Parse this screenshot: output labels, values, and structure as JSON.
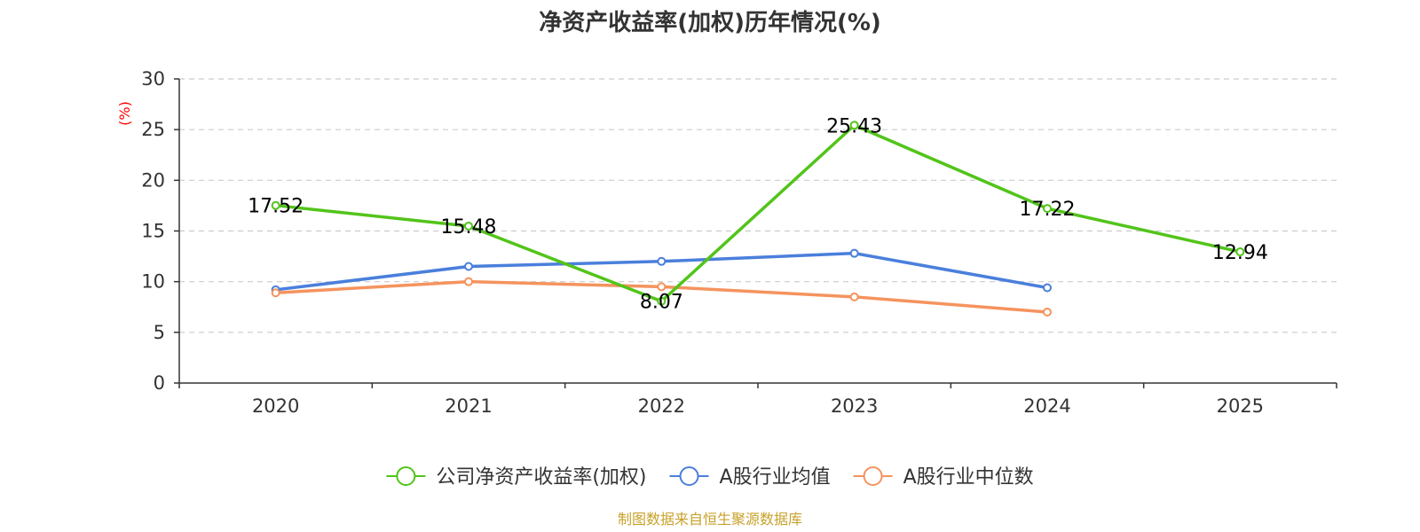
{
  "chart_data": {
    "type": "line",
    "title": "净资产收益率(加权)历年情况(%)",
    "ylabel": "(%)",
    "xlabel": "",
    "categories": [
      "2020",
      "2021",
      "2022",
      "2023",
      "2024",
      "2025"
    ],
    "ylim": [
      0,
      30
    ],
    "yticks": [
      0,
      5,
      10,
      15,
      20,
      25,
      30
    ],
    "grid": true,
    "legend_position": "bottom",
    "series": [
      {
        "name": "公司净资产收益率(加权)",
        "color": "#52c41a",
        "values": [
          17.52,
          15.48,
          8.07,
          25.43,
          17.22,
          12.94
        ],
        "labels": [
          "17.52",
          "15.48",
          "8.07",
          "25.43",
          "17.22",
          "12.94"
        ],
        "show_labels": true
      },
      {
        "name": "A股行业均值",
        "color": "#4a7fdc",
        "values": [
          9.2,
          11.5,
          12.0,
          12.8,
          9.4,
          null
        ],
        "show_labels": false
      },
      {
        "name": "A股行业中位数",
        "color": "#f5935e",
        "values": [
          8.9,
          10.0,
          9.5,
          8.5,
          7.0,
          null
        ],
        "show_labels": false
      }
    ],
    "source": "制图数据来自恒生聚源数据库",
    "source_color": "#c8a12a"
  }
}
